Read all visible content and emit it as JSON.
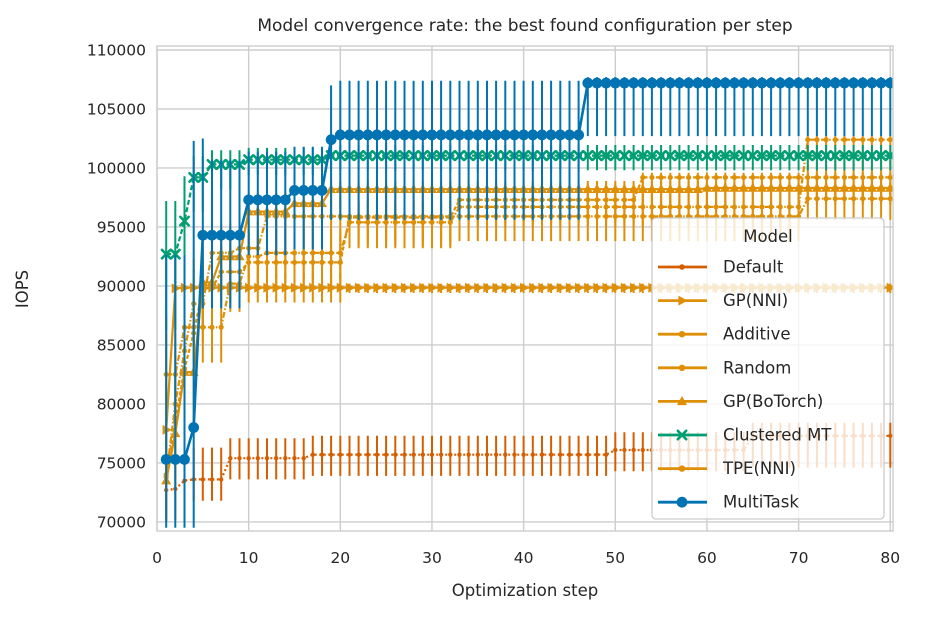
{
  "chart_data": {
    "type": "line",
    "title": "Model convergence rate: the best found configuration per step",
    "xlabel": "Optimization step",
    "ylabel": "IOPS",
    "xlim": [
      0,
      80.3
    ],
    "ylim": [
      69230,
      110340
    ],
    "xticks": [
      0,
      10,
      20,
      30,
      40,
      50,
      60,
      70,
      80
    ],
    "yticks": [
      70000,
      75000,
      80000,
      85000,
      90000,
      95000,
      100000,
      105000,
      110000
    ],
    "grid": true,
    "legend_title": "Model",
    "legend_position": "center right",
    "grid_color": "#cdcdcd",
    "text_color": "#262626",
    "note": "best-found-so-far IOPS per optimization step, mean line with error bars; segments are [step_from, step_to, value, err_low, err_high]",
    "series": [
      {
        "name": "Default",
        "color": "#d55e00",
        "marker": "dot",
        "marker_size": 2.2,
        "dash": "2 2.5",
        "segments": [
          [
            1,
            1,
            72700,
            70000,
            76000
          ],
          [
            2,
            2,
            72800,
            70200,
            76000
          ],
          [
            3,
            3,
            73500,
            71500,
            76200
          ],
          [
            4,
            7,
            73600,
            71800,
            76300
          ],
          [
            8,
            16,
            75400,
            73600,
            77100
          ],
          [
            17,
            49,
            75700,
            73900,
            77300
          ],
          [
            50,
            64,
            76100,
            74300,
            77600
          ],
          [
            65,
            80,
            77300,
            74600,
            78400
          ]
        ]
      },
      {
        "name": "GP(NNI)",
        "color": "#de8f05",
        "marker": "triangle-right",
        "marker_size": 5,
        "dash": "",
        "segments": [
          [
            1,
            1,
            77800,
            70500,
            87500
          ],
          [
            2,
            2,
            89800,
            86500,
            92800
          ],
          [
            3,
            6,
            89850,
            87500,
            92300
          ],
          [
            7,
            20,
            89850,
            88600,
            91100
          ],
          [
            21,
            80,
            89850,
            89400,
            90200
          ]
        ]
      },
      {
        "name": "Additive",
        "color": "#de8f05",
        "marker": "dot",
        "marker_size": 2.6,
        "dash": "6 2 1.5 2",
        "segments": [
          [
            1,
            2,
            82500,
            78500,
            86000
          ],
          [
            3,
            7,
            86500,
            83500,
            89200
          ],
          [
            8,
            9,
            90200,
            87800,
            92300
          ],
          [
            10,
            11,
            92500,
            90200,
            94300
          ],
          [
            12,
            20,
            92800,
            90600,
            94800
          ],
          [
            21,
            32,
            95400,
            93200,
            96900
          ],
          [
            33,
            70,
            96700,
            95000,
            97800
          ],
          [
            71,
            80,
            102400,
            97200,
            102700
          ]
        ]
      },
      {
        "name": "Random",
        "color": "#de8f05",
        "marker": "dot",
        "marker_size": 2.6,
        "dash": "4 2.2",
        "segments": [
          [
            1,
            1,
            74000,
            70300,
            77800
          ],
          [
            2,
            2,
            78500,
            74500,
            82800
          ],
          [
            3,
            3,
            83000,
            79200,
            86800
          ],
          [
            4,
            4,
            86000,
            82400,
            89300
          ],
          [
            5,
            6,
            89800,
            86700,
            92100
          ],
          [
            7,
            9,
            91200,
            88700,
            93400
          ],
          [
            10,
            20,
            92000,
            89800,
            94000
          ],
          [
            21,
            32,
            95800,
            93400,
            97200
          ],
          [
            33,
            52,
            97300,
            95400,
            98600
          ],
          [
            53,
            80,
            99200,
            96900,
            99600
          ]
        ]
      },
      {
        "name": "GP(BoTorch)",
        "color": "#de8f05",
        "marker": "triangle-up",
        "marker_size": 5,
        "dash": "",
        "segments": [
          [
            1,
            1,
            73500,
            70200,
            77500
          ],
          [
            2,
            2,
            77500,
            73500,
            81500
          ],
          [
            3,
            4,
            82700,
            78500,
            87000
          ],
          [
            5,
            6,
            90300,
            86500,
            93300
          ],
          [
            7,
            9,
            92500,
            89200,
            94900
          ],
          [
            10,
            14,
            96300,
            93700,
            97900
          ],
          [
            15,
            18,
            97000,
            94700,
            98300
          ],
          [
            19,
            59,
            98200,
            96600,
            98900
          ],
          [
            60,
            80,
            98300,
            97700,
            98700
          ]
        ]
      },
      {
        "name": "Clustered MT",
        "color": "#029e73",
        "marker": "x",
        "marker_size": 4.2,
        "dash": "5 2.5",
        "segments": [
          [
            1,
            2,
            92700,
            86200,
            97200
          ],
          [
            3,
            3,
            95500,
            90500,
            99300
          ],
          [
            4,
            5,
            99200,
            96300,
            101000
          ],
          [
            6,
            9,
            100300,
            98200,
            101500
          ],
          [
            10,
            18,
            100700,
            99400,
            101700
          ],
          [
            19,
            80,
            101050,
            99800,
            101950
          ]
        ]
      },
      {
        "name": "TPE(NNI)",
        "color": "#de8f05",
        "marker": "dot",
        "marker_size": 2.6,
        "dash": "6 2 1.5 2",
        "segments": [
          [
            1,
            1,
            73800,
            70200,
            78300
          ],
          [
            2,
            2,
            80000,
            75800,
            84300
          ],
          [
            3,
            3,
            84500,
            80400,
            88300
          ],
          [
            4,
            5,
            88500,
            85200,
            91400
          ],
          [
            6,
            8,
            92800,
            89700,
            95300
          ],
          [
            9,
            11,
            93200,
            90700,
            95400
          ],
          [
            12,
            70,
            95900,
            93800,
            97200
          ],
          [
            71,
            80,
            97400,
            95600,
            98000
          ]
        ]
      },
      {
        "name": "MultiTask",
        "color": "#0173b2",
        "marker": "circle",
        "marker_size": 5.4,
        "dash": "",
        "segments": [
          [
            1,
            3,
            75300,
            69500,
            92600
          ],
          [
            4,
            4,
            78000,
            69500,
            102300
          ],
          [
            5,
            5,
            94300,
            88100,
            102500
          ],
          [
            6,
            9,
            94300,
            88100,
            100700
          ],
          [
            10,
            14,
            97300,
            92600,
            101400
          ],
          [
            15,
            18,
            98100,
            93100,
            101800
          ],
          [
            19,
            19,
            102400,
            95600,
            107000
          ],
          [
            20,
            46,
            102800,
            95600,
            107400
          ],
          [
            47,
            80,
            107200,
            102700,
            107700
          ]
        ]
      }
    ]
  }
}
